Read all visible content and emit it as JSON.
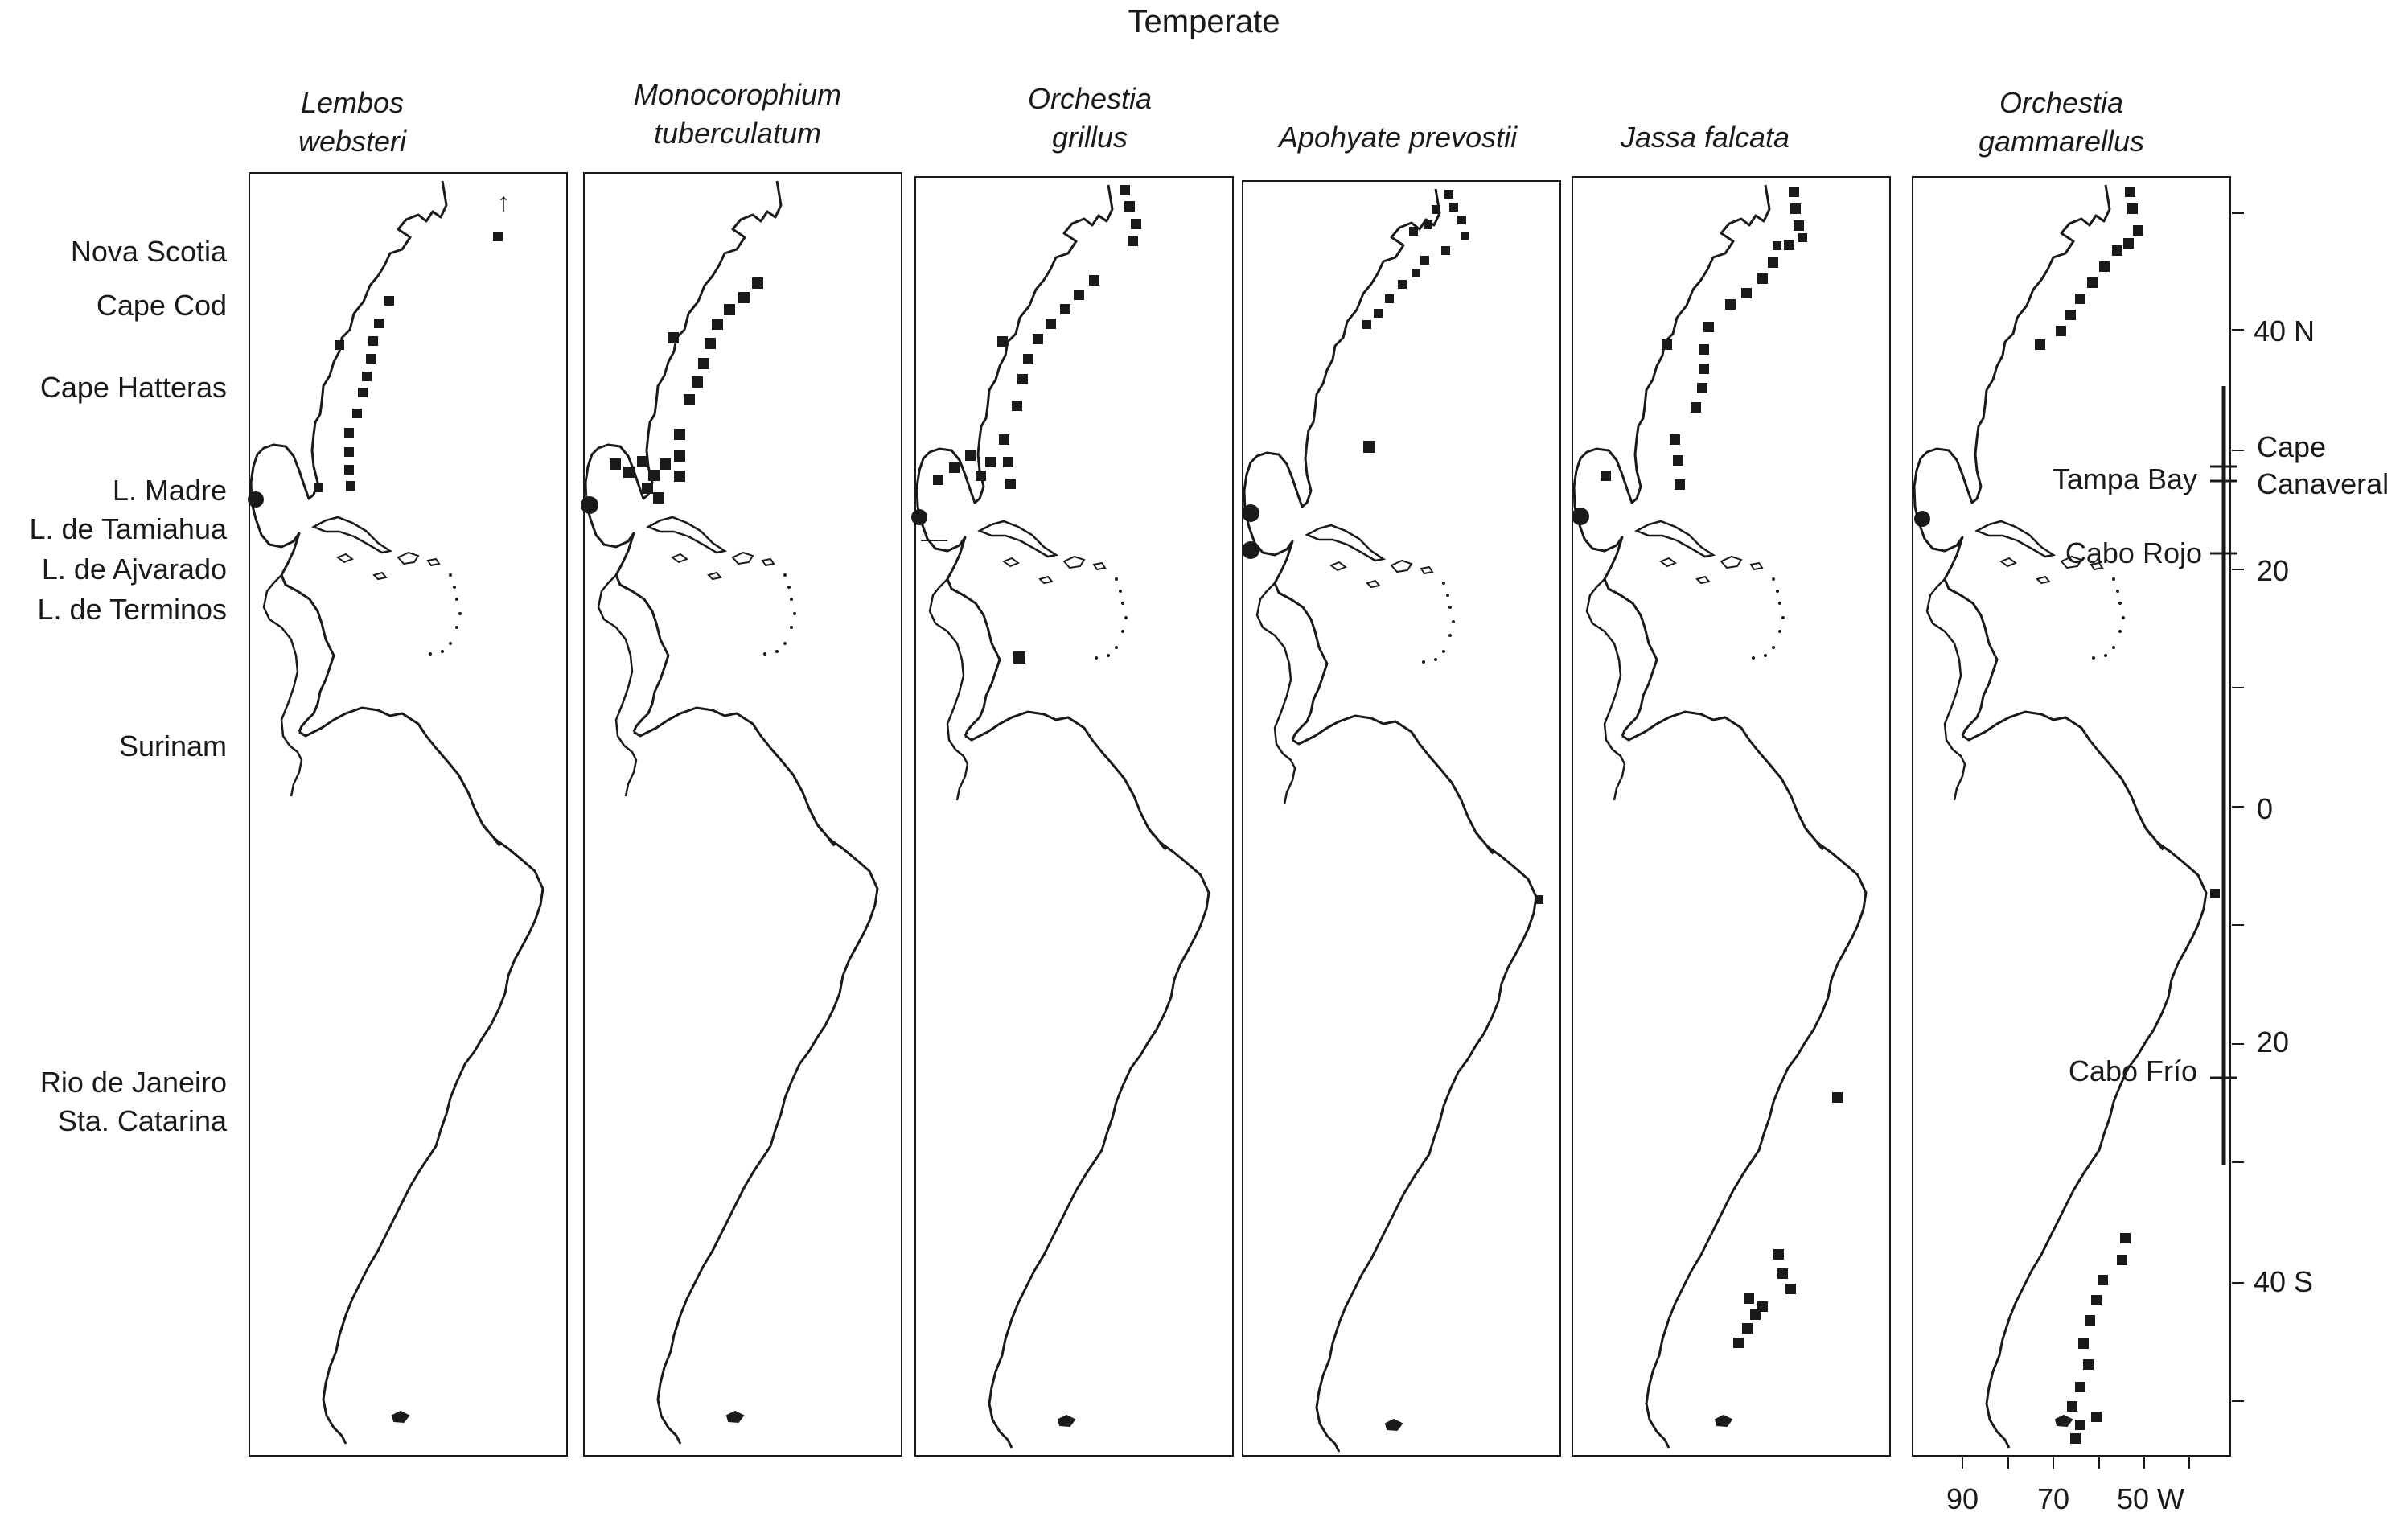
{
  "figure_title": "Temperate",
  "panels": [
    {
      "species_line1": "Lembos",
      "species_line2": "websteri"
    },
    {
      "species_line1": "Monocorophium",
      "species_line2": "tuberculatum"
    },
    {
      "species_line1": "Orchestia",
      "species_line2": "grillus"
    },
    {
      "species_line1": "Apohyate prevostii",
      "species_line2": ""
    },
    {
      "species_line1": "Jassa falcata",
      "species_line2": ""
    },
    {
      "species_line1": "Orchestia",
      "species_line2": "gammarellus"
    }
  ],
  "place_labels_left": [
    "Nova Scotia",
    "Cape Cod",
    "Cape Hatteras",
    "L. Madre",
    "L. de Tamiahua",
    "L. de Ajvarado",
    "L. de Terminos",
    "Surinam",
    "Rio de Janeiro",
    "Sta. Catarina"
  ],
  "place_labels_right": {
    "cape_line1": "Cape",
    "cape_line2": "Canaveral",
    "tampa": "Tampa Bay",
    "cabo_rojo": "Cabo Rojo",
    "cabo_frio": "Cabo Frío"
  },
  "latitude_labels": [
    "40 N",
    "20",
    "0",
    "20",
    "40 S"
  ],
  "longitude_labels": [
    "90",
    "70",
    "50 W"
  ],
  "colors": {
    "ink": "#1a1a1a",
    "background": "#ffffff"
  }
}
